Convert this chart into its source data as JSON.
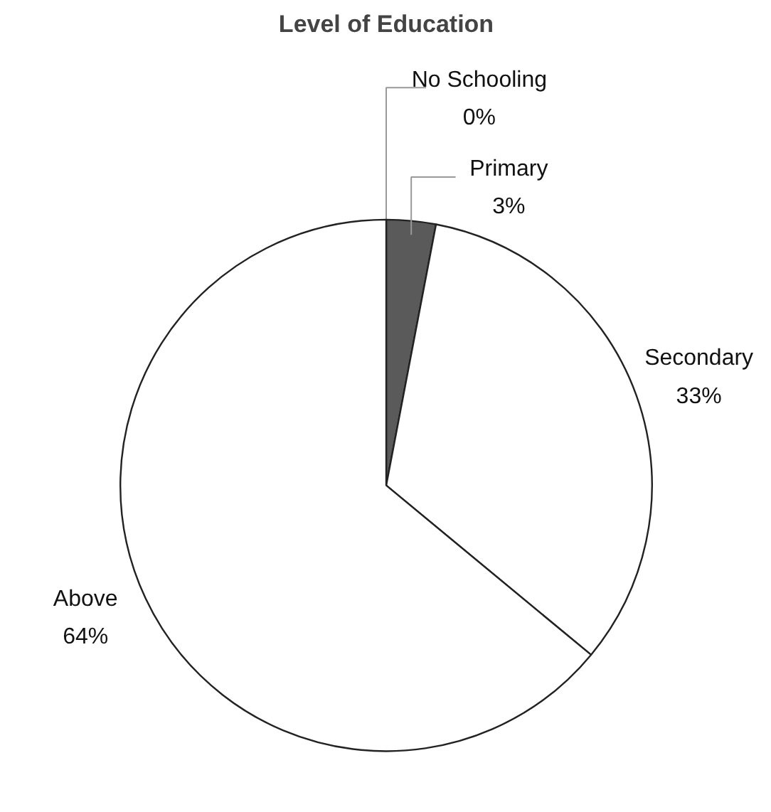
{
  "chart_data": {
    "type": "pie",
    "title": "Level of Education",
    "categories": [
      "No Schooling",
      "Primary",
      "Secondary",
      "Above"
    ],
    "values": [
      0,
      3,
      33,
      64
    ],
    "colors": [
      "#ffffff",
      "#5a5a5a",
      "#ffffff",
      "#ffffff"
    ],
    "value_labels": [
      "0%",
      "3%",
      "33%",
      "64%"
    ]
  }
}
